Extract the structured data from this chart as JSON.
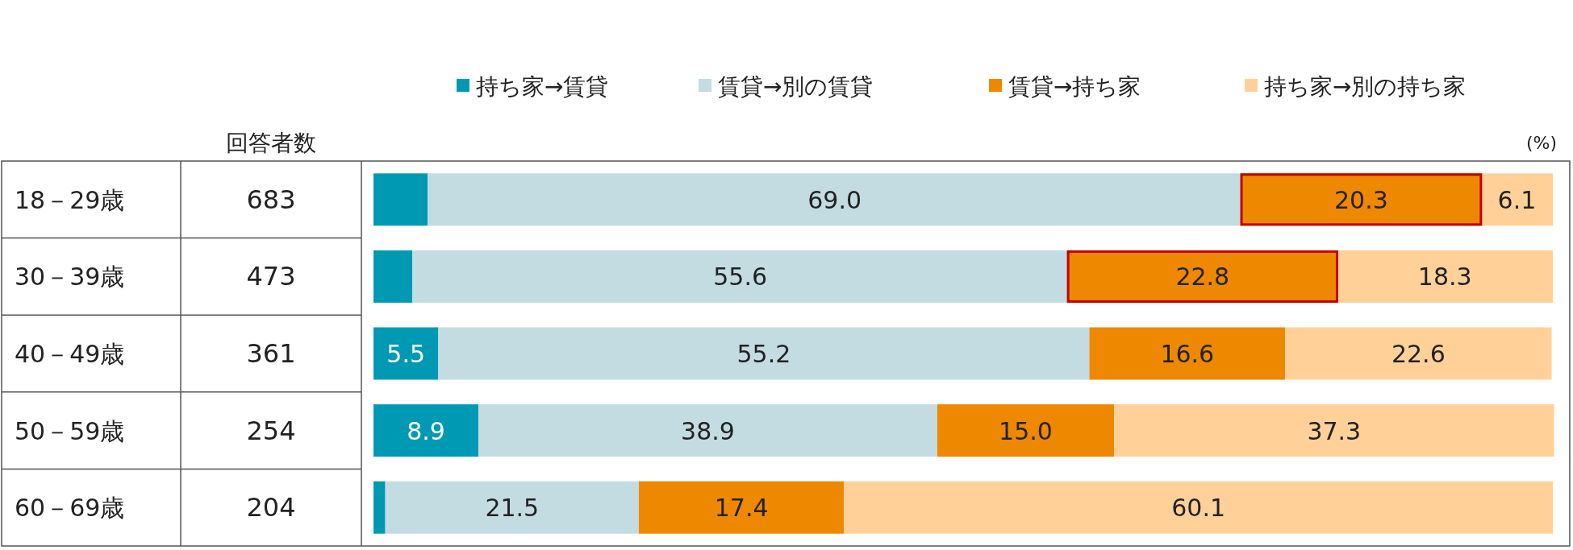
{
  "chart_data": {
    "type": "bar",
    "orientation": "horizontal",
    "stacked": true,
    "legend": "top",
    "categories": [
      "18－29歳",
      "30－39歳",
      "40－49歳",
      "50－59歳",
      "60－69歳"
    ],
    "xlim": [
      0,
      100
    ],
    "series": [
      {
        "name": "持ち家→賃貸",
        "color": "#0099b3",
        "values": [
          4.6,
          3.3,
          5.5,
          8.9,
          1.0
        ],
        "value_labels": [
          null,
          null,
          "5.5",
          "8.9",
          null
        ]
      },
      {
        "name": "賃貸→別の賃貸",
        "color": "#c2dce2",
        "values": [
          69.0,
          55.6,
          55.2,
          38.9,
          21.5
        ],
        "value_labels": [
          "69.0",
          "55.6",
          "55.2",
          "38.9",
          "21.5"
        ]
      },
      {
        "name": "賃貸→持ち家",
        "color": "#ee8800",
        "values": [
          20.3,
          22.8,
          16.6,
          15.0,
          17.4
        ],
        "value_labels": [
          "20.3",
          "22.8",
          "16.6",
          "15.0",
          "17.4"
        ]
      },
      {
        "name": "持ち家→別の持ち家",
        "color": "#ffd199",
        "values": [
          6.1,
          18.3,
          22.6,
          37.3,
          60.1
        ],
        "value_labels": [
          "6.1",
          "18.3",
          "22.6",
          "37.3",
          "60.1"
        ]
      }
    ],
    "annotations": [
      "(%)",
      "回答者数",
      "683",
      "473",
      "361",
      "254",
      "204"
    ]
  }
}
